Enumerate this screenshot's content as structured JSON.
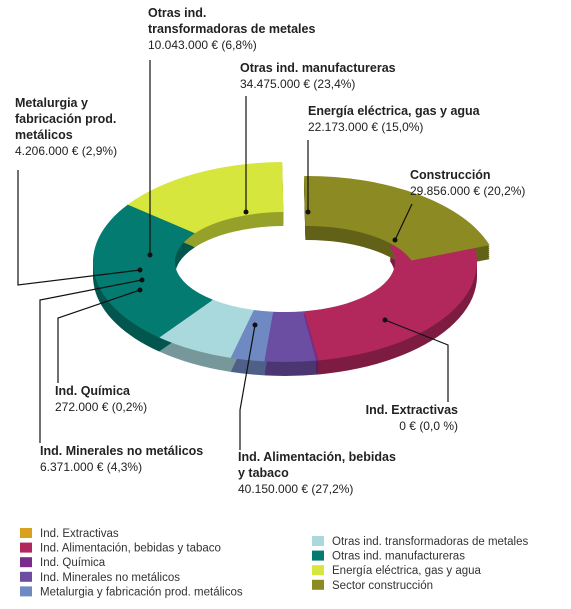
{
  "chart_data": {
    "type": "donut",
    "categories": [
      "Ind. Extractivas",
      "Ind. Alimentación, bebidas y tabaco",
      "Ind. Química",
      "Ind. Minerales no metálicos",
      "Metalurgia y fabricación prod. metálicos",
      "Otras ind. transformadoras de metales",
      "Otras ind. manufactureras",
      "Energía eléctrica, gas y agua",
      "Sector construcción"
    ],
    "labels": [
      [
        "Ind. Extractivas"
      ],
      [
        "Ind. Alimentación, bebidas",
        "y tabaco"
      ],
      [
        "Ind. Química"
      ],
      [
        "Ind. Minerales no metálicos"
      ],
      [
        "Metalurgia y",
        "fabricación prod.",
        "metálicos"
      ],
      [
        "Otras ind.",
        "transformadoras de metales"
      ],
      [
        "Otras ind. manufactureras"
      ],
      [
        "Energía eléctrica, gas y agua"
      ],
      [
        "Construcción"
      ]
    ],
    "values": [
      0,
      40150000,
      272000,
      6371000,
      4206000,
      10043000,
      34475000,
      22173000,
      29856000
    ],
    "value_labels": [
      "0 € (0,0 %)",
      "40.150.000 € (27,2%)",
      "272.000 € (0,2%)",
      "6.371.000 € (4,3%)",
      "4.206.000 € (2,9%)",
      "10.043.000 € (6,8%)",
      "34.475.000 € (23,4%)",
      "22.173.000 € (15,0%)",
      "29.856.000 € (20,2%)"
    ],
    "colors": [
      "#d9a21e",
      "#b3285c",
      "#7b2b8c",
      "#6b4da2",
      "#6f89c2",
      "#a9d9dd",
      "#037b70",
      "#d6e63c",
      "#8c8a22"
    ],
    "explode": "Sector construcción"
  }
}
